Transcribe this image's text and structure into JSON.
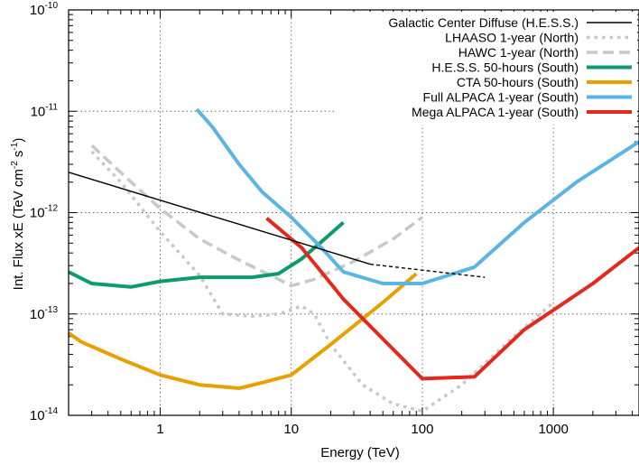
{
  "chart_data": {
    "type": "line",
    "xlabel": "Energy (TeV)",
    "ylabel": {
      "prefix": "Int. Flux xE (TeV cm",
      "sup1": "-2",
      "mid": " s",
      "sup2": "-1",
      "suffix": ")"
    },
    "xscale": "log",
    "yscale": "log",
    "xlim": [
      0.2,
      4500
    ],
    "ylim": [
      1e-14,
      1e-10
    ],
    "grid": true,
    "legend_position": "top-right",
    "x_ticks": [
      {
        "value": 1,
        "label": "1"
      },
      {
        "value": 10,
        "label": "10"
      },
      {
        "value": 100,
        "label": "100"
      },
      {
        "value": 1000,
        "label": "1000"
      }
    ],
    "y_ticks": [
      {
        "value": 1e-14,
        "base": "10",
        "exp": "-14"
      },
      {
        "value": 1e-13,
        "base": "10",
        "exp": "-13"
      },
      {
        "value": 1e-12,
        "base": "10",
        "exp": "-12"
      },
      {
        "value": 1e-11,
        "base": "10",
        "exp": "-11"
      },
      {
        "value": 1e-10,
        "base": "10",
        "exp": "-10"
      }
    ],
    "series": [
      {
        "name": "Galactic Center Diffuse (H.E.S.S.)",
        "color": "#000000",
        "style": "solid",
        "width": 1.4,
        "points": [
          [
            0.2,
            2.5e-12
          ],
          [
            40,
            3.1e-13
          ]
        ],
        "extension": {
          "style": "dashed",
          "points": [
            [
              40,
              3.1e-13
            ],
            [
              300,
              2.3e-13
            ]
          ]
        }
      },
      {
        "name": "LHAASO 1-year (North)",
        "color": "#c8c8c8",
        "style": "dotted",
        "width": 3.5,
        "points": [
          [
            0.3,
            4e-12
          ],
          [
            0.5,
            2e-12
          ],
          [
            1,
            6.5e-13
          ],
          [
            2,
            2.4e-13
          ],
          [
            3,
            1e-13
          ],
          [
            5,
            9.5e-14
          ],
          [
            8,
            1e-13
          ],
          [
            12,
            1.2e-13
          ],
          [
            15,
            1e-13
          ],
          [
            20,
            5e-14
          ],
          [
            35,
            2e-14
          ],
          [
            60,
            1.3e-14
          ],
          [
            100,
            1.1e-14
          ],
          [
            200,
            2e-14
          ],
          [
            500,
            6e-14
          ],
          [
            1000,
            1.3e-13
          ]
        ]
      },
      {
        "name": "HAWC 1-year (North)",
        "color": "#c8c8c8",
        "style": "dashed",
        "width": 3.5,
        "points": [
          [
            0.3,
            4.6e-12
          ],
          [
            0.6,
            2e-12
          ],
          [
            1,
            1.1e-12
          ],
          [
            2,
            5.5e-13
          ],
          [
            4,
            3.4e-13
          ],
          [
            7,
            2.4e-13
          ],
          [
            10,
            1.9e-13
          ],
          [
            15,
            2.2e-13
          ],
          [
            30,
            3.3e-13
          ],
          [
            60,
            5.5e-13
          ],
          [
            100,
            9e-13
          ]
        ]
      },
      {
        "name": "H.E.S.S. 50-hours (South)",
        "color": "#0b9b6e",
        "style": "solid",
        "width": 4,
        "points": [
          [
            0.2,
            2.6e-13
          ],
          [
            0.3,
            2e-13
          ],
          [
            0.6,
            1.85e-13
          ],
          [
            1,
            2.1e-13
          ],
          [
            2,
            2.3e-13
          ],
          [
            5,
            2.3e-13
          ],
          [
            8,
            2.5e-13
          ],
          [
            12,
            3.5e-13
          ],
          [
            18,
            5.5e-13
          ],
          [
            25,
            8e-13
          ]
        ]
      },
      {
        "name": "CTA 50-hours (South)",
        "color": "#e8a000",
        "style": "solid",
        "width": 4,
        "points": [
          [
            0.2,
            6.5e-14
          ],
          [
            0.25,
            5.3e-14
          ],
          [
            0.5,
            3.6e-14
          ],
          [
            1,
            2.5e-14
          ],
          [
            2,
            2e-14
          ],
          [
            4,
            1.85e-14
          ],
          [
            6,
            2.1e-14
          ],
          [
            10,
            2.5e-14
          ],
          [
            20,
            5e-14
          ],
          [
            50,
            1.3e-13
          ],
          [
            90,
            2.5e-13
          ]
        ]
      },
      {
        "name": "Full ALPACA 1-year (South)",
        "color": "#5ab4e5",
        "style": "solid",
        "width": 4,
        "points": [
          [
            1.9,
            1.05e-11
          ],
          [
            2.5,
            7e-12
          ],
          [
            4,
            3e-12
          ],
          [
            6,
            1.6e-12
          ],
          [
            10,
            9e-13
          ],
          [
            17,
            4.5e-13
          ],
          [
            25,
            2.6e-13
          ],
          [
            50,
            2e-13
          ],
          [
            100,
            2e-13
          ],
          [
            250,
            2.9e-13
          ],
          [
            600,
            8e-13
          ],
          [
            1500,
            2e-12
          ],
          [
            4500,
            5e-12
          ]
        ]
      },
      {
        "name": "Mega ALPACA 1-year (South)",
        "color": "#e3281c",
        "style": "solid",
        "width": 4,
        "points": [
          [
            6.5,
            8.8e-13
          ],
          [
            12,
            4.5e-13
          ],
          [
            25,
            1.4e-13
          ],
          [
            100,
            2.3e-14
          ],
          [
            250,
            2.4e-14
          ],
          [
            600,
            7e-14
          ],
          [
            2000,
            2e-13
          ],
          [
            4500,
            4.5e-13
          ]
        ]
      }
    ]
  }
}
